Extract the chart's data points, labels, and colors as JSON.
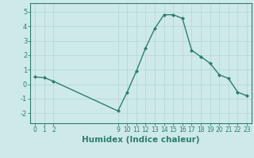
{
  "x": [
    0,
    1,
    2,
    9,
    10,
    11,
    12,
    13,
    14,
    15,
    16,
    17,
    18,
    19,
    20,
    21,
    22,
    23
  ],
  "y": [
    0.5,
    0.45,
    0.2,
    -1.85,
    -0.55,
    0.9,
    2.5,
    3.85,
    4.8,
    4.8,
    4.55,
    2.35,
    1.9,
    1.45,
    0.65,
    0.4,
    -0.55,
    -0.8
  ],
  "line_color": "#2d7d6e",
  "marker": "D",
  "marker_size": 2.0,
  "bg_color": "#ceeae8",
  "grid_color": "#b8d8d6",
  "tick_color": "#2d7d6e",
  "xlabel": "Humidex (Indice chaleur)",
  "xlabel_fontsize": 7.5,
  "xticks": [
    0,
    1,
    2,
    9,
    10,
    11,
    12,
    13,
    14,
    15,
    16,
    17,
    18,
    19,
    20,
    21,
    22,
    23
  ],
  "yticks": [
    -2,
    -1,
    0,
    1,
    2,
    3,
    4,
    5
  ],
  "ylim": [
    -2.7,
    5.6
  ],
  "xlim": [
    -0.5,
    23.5
  ],
  "line_width": 1.0,
  "tick_fontsize": 5.5,
  "ytick_fontsize": 6.0
}
